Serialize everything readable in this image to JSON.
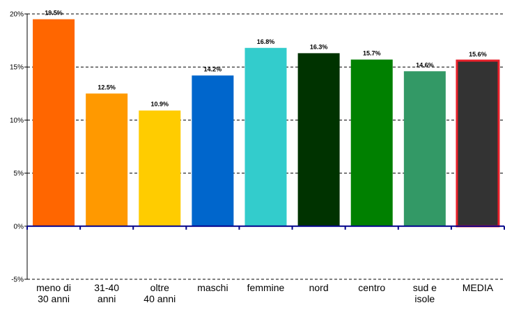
{
  "chart_data": {
    "type": "bar",
    "categories": [
      [
        "meno di",
        "30 anni"
      ],
      [
        "31-40",
        "anni"
      ],
      [
        "oltre",
        "40 anni"
      ],
      [
        "maschi"
      ],
      [
        "femmine"
      ],
      [
        "nord"
      ],
      [
        "centro"
      ],
      [
        "sud e",
        "isole"
      ],
      [
        "MEDIA"
      ]
    ],
    "values": [
      19.5,
      12.5,
      10.9,
      14.2,
      16.8,
      16.3,
      15.7,
      14.6,
      15.6
    ],
    "data_labels": [
      "19.5%",
      "12.5%",
      "10.9%",
      "14.2%",
      "16.8%",
      "16.3%",
      "15.7%",
      "14.6%",
      "15.6%"
    ],
    "colors": [
      "#FF6600",
      "#FF9900",
      "#FFCC00",
      "#0066CC",
      "#33CCCC",
      "#003300",
      "#008000",
      "#339966",
      "#333333"
    ],
    "highlight_border_color": "#E8202A",
    "ylim": [
      -5,
      20
    ],
    "yticks": [
      20,
      15,
      10,
      5,
      0,
      -5
    ],
    "ytick_labels": [
      "20%",
      "15%",
      "10%",
      "5%",
      "0%",
      "-5%"
    ],
    "grid": "dashed horizontal",
    "axis_color": "#00008B",
    "title": "",
    "xlabel": "",
    "ylabel": ""
  }
}
